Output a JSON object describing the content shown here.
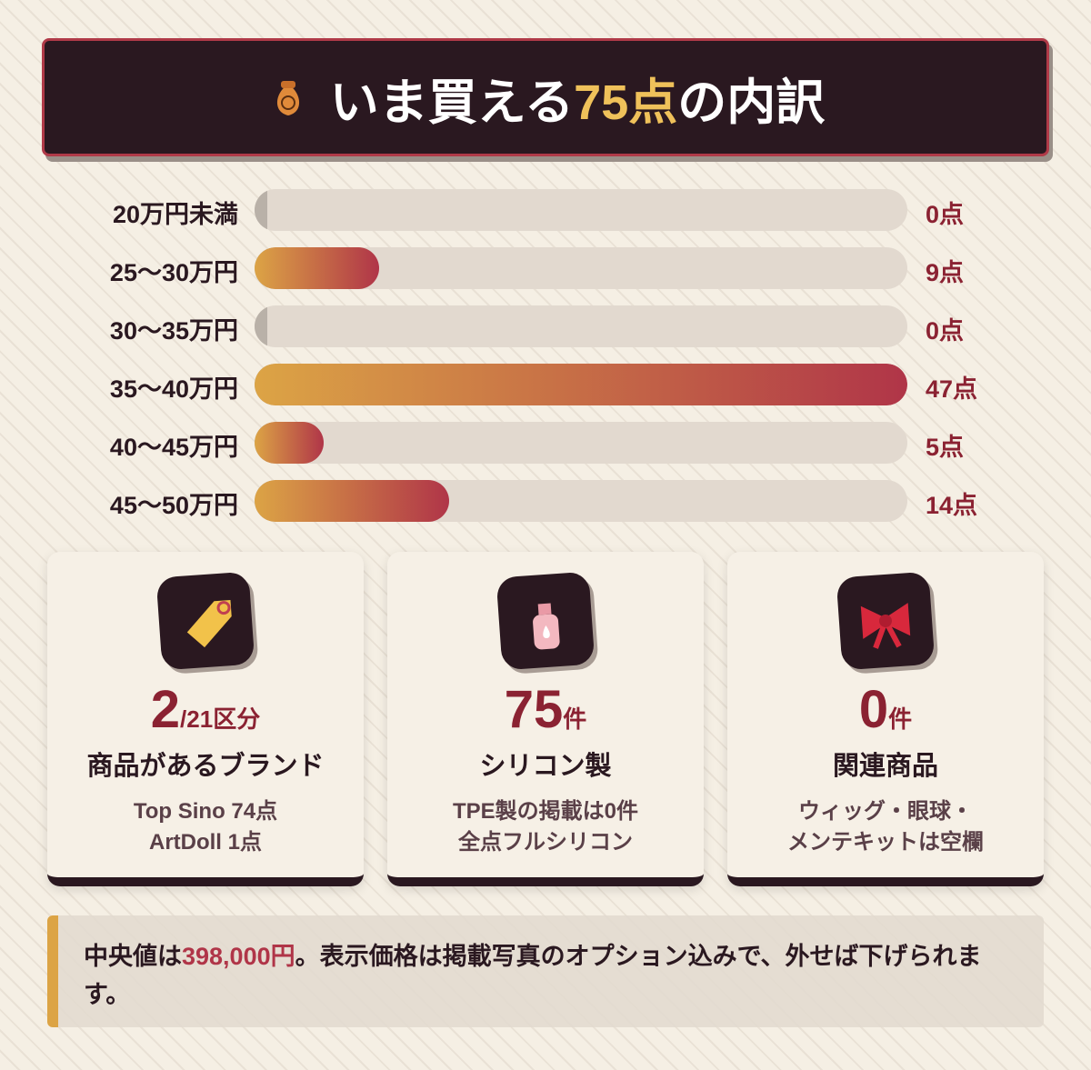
{
  "header": {
    "title_parts": [
      "いま買える",
      "75点",
      "の内訳"
    ]
  },
  "chart_data": {
    "type": "bar",
    "orientation": "horizontal",
    "categories": [
      "20万円未満",
      "25〜30万円",
      "30〜35万円",
      "35〜40万円",
      "40〜45万円",
      "45〜50万円"
    ],
    "values": [
      0,
      9,
      0,
      47,
      5,
      14
    ],
    "value_labels": [
      "0点",
      "9点",
      "0点",
      "47点",
      "5点",
      "14点"
    ],
    "xlim": [
      0,
      47
    ],
    "colors": [
      "#dca445",
      "#b03548"
    ]
  },
  "cards": [
    {
      "number": 2,
      "unit": "/21区分",
      "title": "商品があるブランド",
      "lines": [
        "Top Sino 74点",
        "ArtDoll 1点"
      ]
    },
    {
      "number": 75,
      "unit": "件",
      "title": "シリコン製",
      "lines": [
        "TPE製の掲載は0件",
        "全点フルシリコン"
      ]
    },
    {
      "number": 0,
      "unit": "件",
      "title": "関連商品",
      "lines": [
        "ウィッグ・眼球・",
        "メンテキットは空欄"
      ]
    }
  ],
  "note": {
    "parts": [
      "中央値は",
      "398,000円",
      "。表示価格は掲載写真のオプション込みで、外せば下げられます。"
    ]
  }
}
